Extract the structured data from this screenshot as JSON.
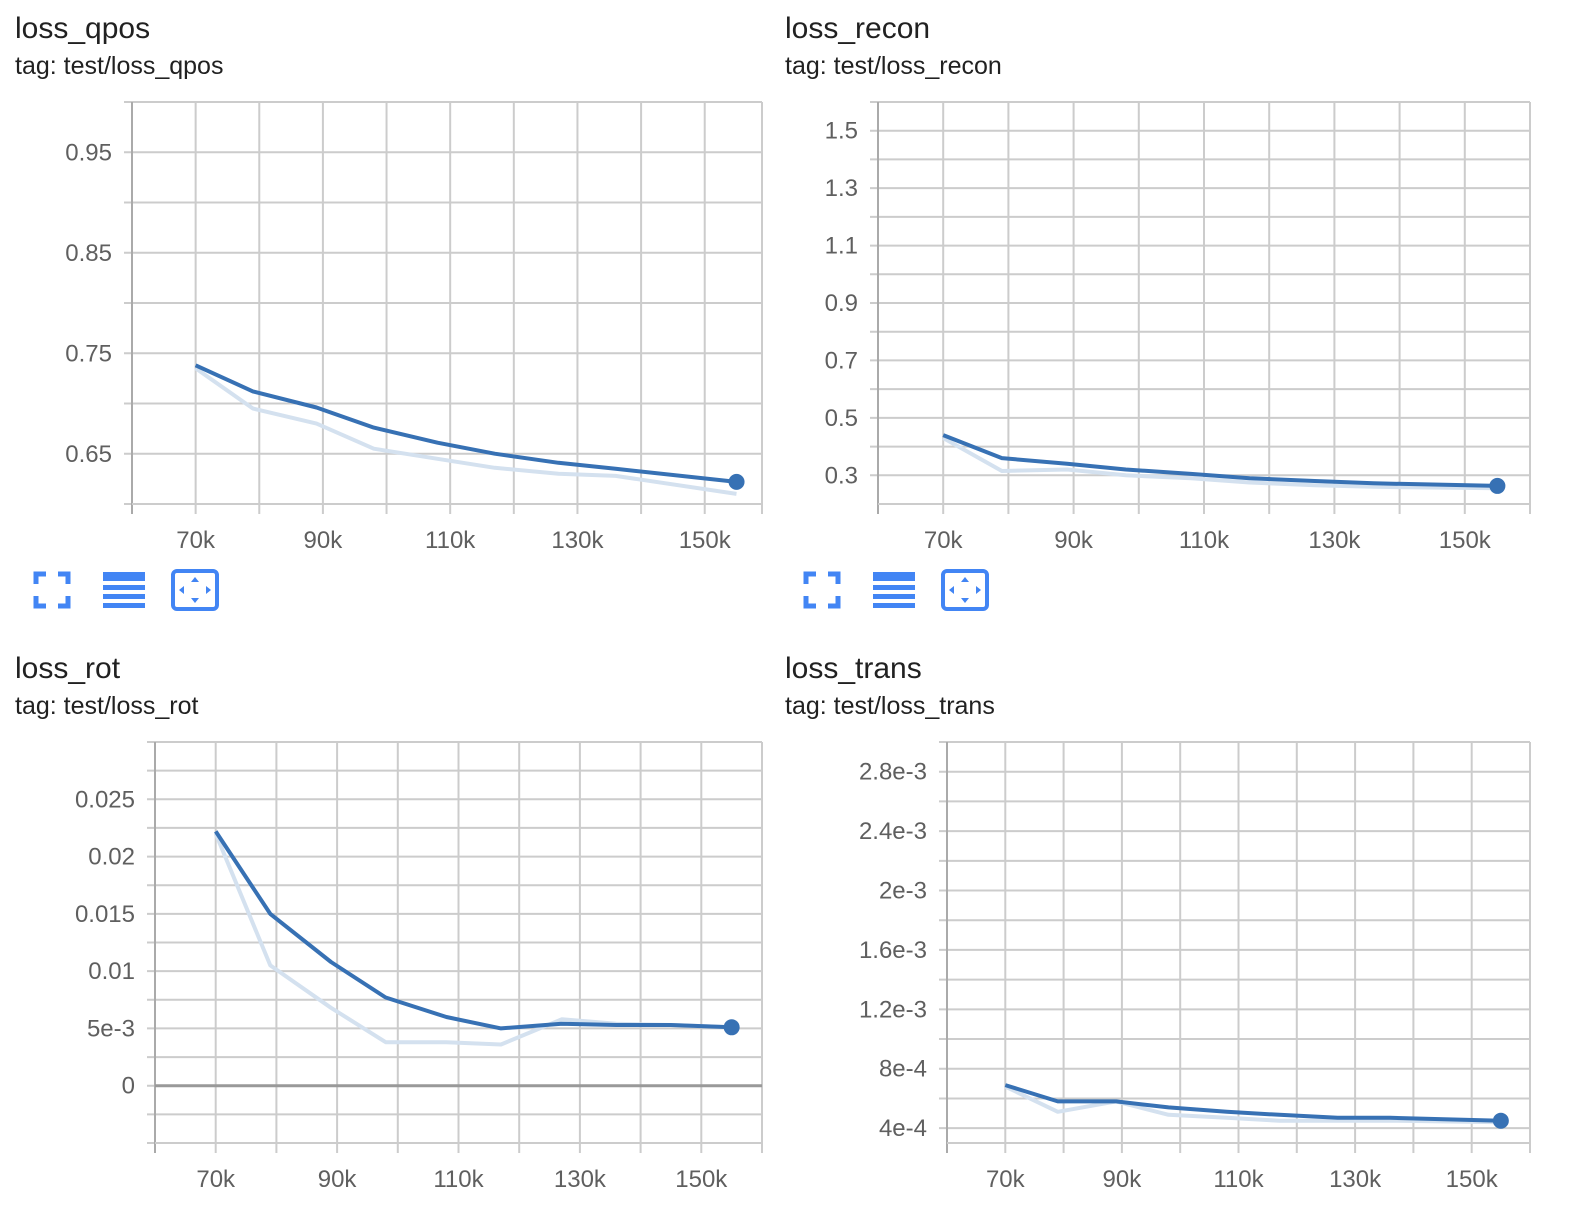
{
  "cards": [
    {
      "title": "loss_qpos",
      "tag": "tag: test/loss_qpos"
    },
    {
      "title": "loss_recon",
      "tag": "tag: test/loss_recon"
    },
    {
      "title": "loss_rot",
      "tag": "tag: test/loss_rot"
    },
    {
      "title": "loss_trans",
      "tag": "tag: test/loss_trans"
    }
  ],
  "toolbar": {
    "icons": [
      "fullscreen-icon",
      "data-table-icon",
      "fit-domain-icon"
    ],
    "color": "#4285f4"
  },
  "colors": {
    "smoothed": "#3771b4",
    "raw": "#d4e1ef",
    "grid": "#cccccc",
    "zero_line": "#999999"
  },
  "chart_data": [
    {
      "type": "line",
      "title": "loss_qpos",
      "xlim": [
        60000,
        159000
      ],
      "ylim": [
        0.6,
        1.0
      ],
      "x_ticks": [
        70000,
        90000,
        110000,
        130000,
        150000
      ],
      "x_tick_labels": [
        "70k",
        "90k",
        "110k",
        "130k",
        "150k"
      ],
      "y_ticks": [
        0.65,
        0.75,
        0.85,
        0.95
      ],
      "y_tick_labels": [
        "0.65",
        "0.75",
        "0.85",
        "0.95"
      ],
      "grid": true,
      "series": [
        {
          "x": [
            70000,
            79000,
            89000,
            98000,
            108000,
            117000,
            127000,
            136000,
            155000
          ],
          "y": [
            0.738,
            0.712,
            0.696,
            0.676,
            0.661,
            0.65,
            0.641,
            0.635,
            0.622
          ]
        },
        {
          "x": [
            70000,
            79000,
            89000,
            98000,
            108000,
            117000,
            127000,
            136000,
            155000
          ],
          "y": [
            0.735,
            0.695,
            0.68,
            0.655,
            0.645,
            0.636,
            0.63,
            0.628,
            0.61
          ]
        }
      ]
    },
    {
      "type": "line",
      "title": "loss_recon",
      "xlim": [
        60000,
        160000
      ],
      "ylim": [
        0.2,
        1.6
      ],
      "x_ticks": [
        70000,
        90000,
        110000,
        130000,
        150000
      ],
      "x_tick_labels": [
        "70k",
        "90k",
        "110k",
        "130k",
        "150k"
      ],
      "y_ticks": [
        0.3,
        0.5,
        0.7,
        0.9,
        1.1,
        1.3,
        1.5
      ],
      "y_tick_labels": [
        "0.3",
        "0.5",
        "0.7",
        "0.9",
        "1.1",
        "1.3",
        "1.5"
      ],
      "grid": true,
      "series": [
        {
          "x": [
            70000,
            79000,
            89000,
            98000,
            108000,
            117000,
            127000,
            136000,
            155000
          ],
          "y": [
            0.44,
            0.36,
            0.34,
            0.32,
            0.305,
            0.29,
            0.28,
            0.272,
            0.263
          ]
        },
        {
          "x": [
            70000,
            79000,
            89000,
            98000,
            108000,
            117000,
            127000,
            136000,
            155000
          ],
          "y": [
            0.43,
            0.315,
            0.32,
            0.3,
            0.29,
            0.275,
            0.265,
            0.26,
            0.255
          ]
        }
      ]
    },
    {
      "type": "line",
      "title": "loss_rot",
      "xlim": [
        60000,
        160000
      ],
      "ylim": [
        -0.005,
        0.03
      ],
      "x_ticks": [
        70000,
        90000,
        110000,
        130000,
        150000
      ],
      "x_tick_labels": [
        "70k",
        "90k",
        "110k",
        "130k",
        "150k"
      ],
      "y_ticks": [
        0,
        0.005,
        0.01,
        0.015,
        0.02,
        0.025
      ],
      "y_tick_labels": [
        "0",
        "5e-3",
        "0.01",
        "0.015",
        "0.02",
        "0.025"
      ],
      "zero_line": true,
      "grid": true,
      "series": [
        {
          "x": [
            70000,
            79000,
            89000,
            98000,
            108000,
            117000,
            127000,
            136000,
            145000,
            155000
          ],
          "y": [
            0.0222,
            0.015,
            0.0108,
            0.0077,
            0.006,
            0.005,
            0.0054,
            0.0053,
            0.0053,
            0.0051
          ]
        },
        {
          "x": [
            70000,
            79000,
            89000,
            98000,
            108000,
            117000,
            127000,
            136000,
            145000,
            155000
          ],
          "y": [
            0.022,
            0.0105,
            0.0068,
            0.0038,
            0.0038,
            0.0036,
            0.0058,
            0.0054,
            0.0053,
            0.0051
          ]
        }
      ]
    },
    {
      "type": "line",
      "title": "loss_trans",
      "xlim": [
        60000,
        160000
      ],
      "ylim": [
        0.0003,
        0.003
      ],
      "x_ticks": [
        70000,
        90000,
        110000,
        130000,
        150000
      ],
      "x_tick_labels": [
        "70k",
        "90k",
        "110k",
        "130k",
        "150k"
      ],
      "y_ticks": [
        0.0004,
        0.0008,
        0.0012,
        0.0016,
        0.002,
        0.0024,
        0.0028
      ],
      "y_tick_labels": [
        "4e-4",
        "8e-4",
        "1.2e-3",
        "1.6e-3",
        "2e-3",
        "2.4e-3",
        "2.8e-3"
      ],
      "grid": true,
      "series": [
        {
          "x": [
            70000,
            79000,
            89000,
            98000,
            108000,
            117000,
            127000,
            136000,
            155000
          ],
          "y": [
            0.00069,
            0.00058,
            0.00058,
            0.00054,
            0.00051,
            0.00049,
            0.00047,
            0.00047,
            0.00045
          ]
        },
        {
          "x": [
            70000,
            79000,
            89000,
            98000,
            108000,
            117000,
            127000,
            136000,
            155000
          ],
          "y": [
            0.00068,
            0.00051,
            0.00058,
            0.00049,
            0.00047,
            0.00045,
            0.00045,
            0.00045,
            0.00044
          ]
        }
      ]
    }
  ]
}
